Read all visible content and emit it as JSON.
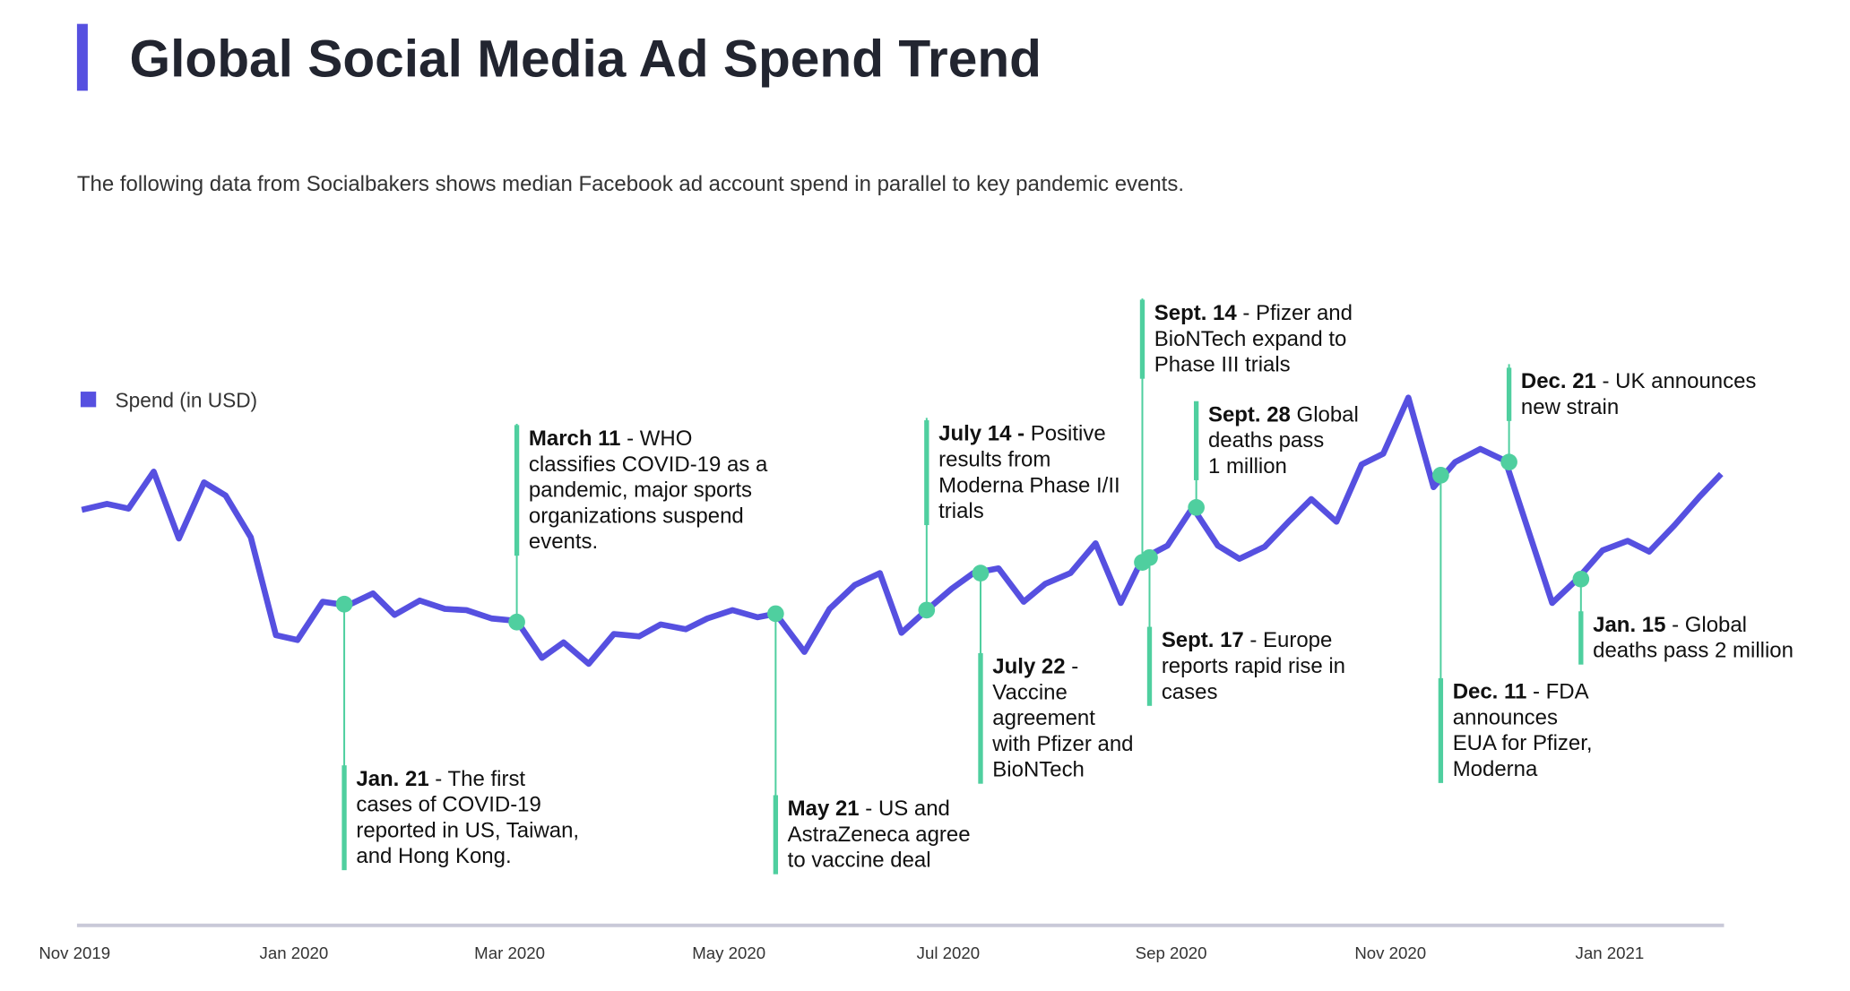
{
  "chart_data": {
    "type": "line",
    "title": "Global Social Media Ad Spend Trend",
    "subtitle": "The following data from Socialbakers shows median Facebook ad account spend in parallel to key pandemic events.",
    "xlim": [
      0,
      461
    ],
    "xticks": [
      {
        "value": 0,
        "label": "Nov 2019"
      },
      {
        "value": 61,
        "label": "Jan 2020"
      },
      {
        "value": 121,
        "label": "Mar 2020"
      },
      {
        "value": 182,
        "label": "May 2020"
      },
      {
        "value": 243,
        "label": "Jul 2020"
      },
      {
        "value": 305,
        "label": "Sep 2020"
      },
      {
        "value": 366,
        "label": "Nov 2020"
      },
      {
        "value": 427,
        "label": "Jan 2021"
      }
    ],
    "ylim": [
      0,
      555
    ],
    "x": [
      2,
      9,
      15,
      22,
      29,
      36,
      42,
      49,
      56,
      62,
      69,
      76,
      83,
      89,
      96,
      103,
      109,
      116,
      123,
      130,
      136,
      143,
      150,
      157,
      163,
      170,
      176,
      183,
      190,
      195,
      203,
      210,
      217,
      224,
      230,
      237,
      244,
      250,
      257,
      264,
      270,
      277,
      284,
      291,
      297,
      304,
      311,
      318,
      324,
      331,
      338,
      344,
      351,
      358,
      364,
      371,
      378,
      384,
      391,
      398,
      411,
      418,
      425,
      432,
      438,
      445,
      452,
      458
    ],
    "series": [
      {
        "name": "Spend (in USD)",
        "color": "#5650e0",
        "values": [
          348,
          353,
          349,
          380,
          324,
          371,
          360,
          325,
          243,
          239,
          271,
          268,
          278,
          260,
          272,
          265,
          264,
          257,
          255,
          224,
          237,
          219,
          244,
          242,
          252,
          248,
          257,
          264,
          258,
          261,
          229,
          265,
          285,
          295,
          245,
          264,
          282,
          295,
          299,
          271,
          286,
          295,
          320,
          270,
          307,
          318,
          350,
          318,
          307,
          317,
          339,
          357,
          338,
          386,
          395,
          442,
          367,
          388,
          399,
          389,
          270,
          290,
          314,
          322,
          313,
          335,
          359,
          378
        ]
      }
    ],
    "legend": "top-left",
    "annotation_color": "#4fcf9f",
    "annotations": [
      {
        "x": 75,
        "value": 269,
        "date": "Jan. 21",
        "lines": [
          " - The first",
          "cases of COVID-19",
          "reported in US, Taiwan,",
          "and Hong Kong."
        ]
      },
      {
        "x": 123,
        "value": 254,
        "date": "March 11",
        "lines": [
          " - WHO",
          "classifies COVID-19 as a",
          "pandemic, major sports",
          "organizations suspend",
          "events."
        ]
      },
      {
        "x": 195,
        "value": 261,
        "date": "May 21",
        "lines": [
          " - US and",
          "AstraZeneca agree",
          "to vaccine deal"
        ]
      },
      {
        "x": 237,
        "value": 264,
        "date": "July 14 -",
        "lines": [
          " Positive",
          "results from",
          "Moderna Phase I/II",
          "trials"
        ]
      },
      {
        "x": 252,
        "value": 295,
        "date": "July 22",
        "lines": [
          " -",
          "Vaccine",
          "agreement",
          "with Pfizer and",
          "BioNTech"
        ]
      },
      {
        "x": 297,
        "value": 304,
        "date": "Sept. 14",
        "lines": [
          " - Pfizer and",
          "BioNTech expand to",
          "Phase III trials"
        ]
      },
      {
        "x": 299,
        "value": 308,
        "date": "Sept. 17",
        "lines": [
          " - Europe",
          "reports rapid rise in",
          "cases"
        ]
      },
      {
        "x": 312,
        "value": 350,
        "date": "Sept. 28",
        "lines": [
          "  Global",
          "deaths pass",
          "1 million"
        ]
      },
      {
        "x": 380,
        "value": 377,
        "date": "Dec. 11",
        "lines": [
          " - FDA",
          "announces",
          "EUA for Pfizer,",
          "Moderna"
        ]
      },
      {
        "x": 399,
        "value": 388,
        "date": "Dec. 21",
        "lines": [
          " - UK announces",
          "new strain"
        ]
      },
      {
        "x": 419,
        "value": 290,
        "date": "Jan. 15",
        "lines": [
          " - Global",
          "deaths pass 2 million"
        ]
      }
    ]
  }
}
